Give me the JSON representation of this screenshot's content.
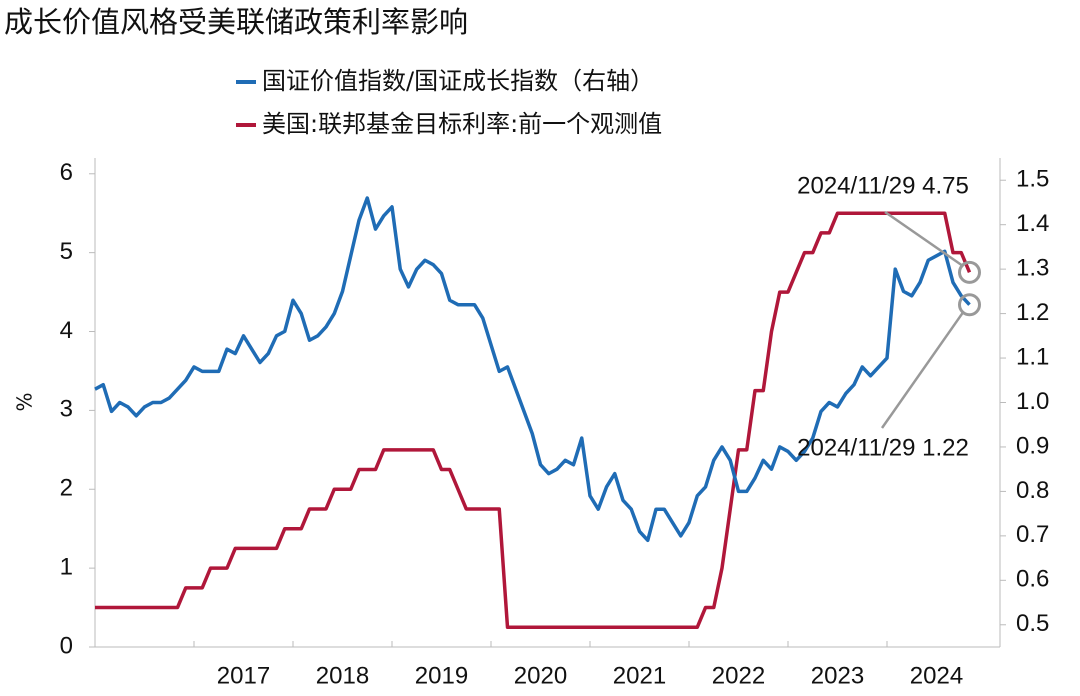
{
  "chart_data": {
    "type": "line",
    "title": "成长价值风格受美联储政策利率影响",
    "y_label": "%",
    "x": [
      "2016-01",
      "2016-02",
      "2016-03",
      "2016-04",
      "2016-05",
      "2016-06",
      "2016-07",
      "2016-08",
      "2016-09",
      "2016-10",
      "2016-11",
      "2016-12",
      "2017-01",
      "2017-02",
      "2017-03",
      "2017-04",
      "2017-05",
      "2017-06",
      "2017-07",
      "2017-08",
      "2017-09",
      "2017-10",
      "2017-11",
      "2017-12",
      "2018-01",
      "2018-02",
      "2018-03",
      "2018-04",
      "2018-05",
      "2018-06",
      "2018-07",
      "2018-08",
      "2018-09",
      "2018-10",
      "2018-11",
      "2018-12",
      "2019-01",
      "2019-02",
      "2019-03",
      "2019-04",
      "2019-05",
      "2019-06",
      "2019-07",
      "2019-08",
      "2019-09",
      "2019-10",
      "2019-11",
      "2019-12",
      "2020-01",
      "2020-02",
      "2020-03",
      "2020-04",
      "2020-05",
      "2020-06",
      "2020-07",
      "2020-08",
      "2020-09",
      "2020-10",
      "2020-11",
      "2020-12",
      "2021-01",
      "2021-02",
      "2021-03",
      "2021-04",
      "2021-05",
      "2021-06",
      "2021-07",
      "2021-08",
      "2021-09",
      "2021-10",
      "2021-11",
      "2021-12",
      "2022-01",
      "2022-02",
      "2022-03",
      "2022-04",
      "2022-05",
      "2022-06",
      "2022-07",
      "2022-08",
      "2022-09",
      "2022-10",
      "2022-11",
      "2022-12",
      "2023-01",
      "2023-02",
      "2023-03",
      "2023-04",
      "2023-05",
      "2023-06",
      "2023-07",
      "2023-08",
      "2023-09",
      "2023-10",
      "2023-11",
      "2023-12",
      "2024-01",
      "2024-02",
      "2024-03",
      "2024-04",
      "2024-05",
      "2024-06",
      "2024-07",
      "2024-08",
      "2024-09",
      "2024-10",
      "2024-11"
    ],
    "xlim": [
      2016,
      2025
    ],
    "xticks": [
      2017,
      2018,
      2019,
      2020,
      2021,
      2022,
      2023,
      2024
    ],
    "ylim": [
      0,
      6.2
    ],
    "yticks": [
      0,
      1,
      2,
      3,
      4,
      5,
      6
    ],
    "y2lim": [
      0.45,
      1.55
    ],
    "y2ticks": [
      0.5,
      0.6,
      0.7,
      0.8,
      0.9,
      {
        "value": 1,
        "label": "1.0"
      },
      1.1,
      1.2,
      1.3,
      1.4,
      1.5
    ],
    "series": [
      {
        "name": "国证价值指数/国证成长指数（右轴）",
        "color": "#1f6cb5",
        "axis": "y2",
        "values": [
          1.03,
          1.04,
          0.98,
          1.0,
          0.99,
          0.97,
          0.99,
          1.0,
          1.0,
          1.01,
          1.03,
          1.05,
          1.08,
          1.07,
          1.07,
          1.07,
          1.12,
          1.11,
          1.15,
          1.12,
          1.09,
          1.11,
          1.15,
          1.16,
          1.23,
          1.2,
          1.14,
          1.15,
          1.17,
          1.2,
          1.25,
          1.33,
          1.41,
          1.46,
          1.39,
          1.42,
          1.44,
          1.3,
          1.26,
          1.3,
          1.32,
          1.31,
          1.29,
          1.23,
          1.22,
          1.22,
          1.22,
          1.19,
          1.13,
          1.07,
          1.08,
          1.03,
          0.98,
          0.93,
          0.86,
          0.84,
          0.85,
          0.87,
          0.86,
          0.92,
          0.79,
          0.76,
          0.81,
          0.84,
          0.78,
          0.76,
          0.71,
          0.69,
          0.76,
          0.76,
          0.73,
          0.7,
          0.73,
          0.79,
          0.81,
          0.87,
          0.9,
          0.87,
          0.8,
          0.8,
          0.83,
          0.87,
          0.85,
          0.9,
          0.89,
          0.87,
          0.89,
          0.92,
          0.98,
          1.0,
          0.99,
          1.02,
          1.04,
          1.08,
          1.06,
          1.08,
          1.1,
          1.3,
          1.25,
          1.24,
          1.27,
          1.32,
          1.33,
          1.34,
          1.27,
          1.24,
          1.22
        ]
      },
      {
        "name": "美国:联邦基金目标利率:前一个观测值",
        "color": "#b0173a",
        "axis": "y",
        "values": [
          0.5,
          0.5,
          0.5,
          0.5,
          0.5,
          0.5,
          0.5,
          0.5,
          0.5,
          0.5,
          0.5,
          0.75,
          0.75,
          0.75,
          1.0,
          1.0,
          1.0,
          1.25,
          1.25,
          1.25,
          1.25,
          1.25,
          1.25,
          1.5,
          1.5,
          1.5,
          1.75,
          1.75,
          1.75,
          2.0,
          2.0,
          2.0,
          2.25,
          2.25,
          2.25,
          2.5,
          2.5,
          2.5,
          2.5,
          2.5,
          2.5,
          2.5,
          2.25,
          2.25,
          2.0,
          1.75,
          1.75,
          1.75,
          1.75,
          1.75,
          0.25,
          0.25,
          0.25,
          0.25,
          0.25,
          0.25,
          0.25,
          0.25,
          0.25,
          0.25,
          0.25,
          0.25,
          0.25,
          0.25,
          0.25,
          0.25,
          0.25,
          0.25,
          0.25,
          0.25,
          0.25,
          0.25,
          0.25,
          0.25,
          0.5,
          0.5,
          1.0,
          1.75,
          2.5,
          2.5,
          3.25,
          3.25,
          4.0,
          4.5,
          4.5,
          4.75,
          5.0,
          5.0,
          5.25,
          5.25,
          5.5,
          5.5,
          5.5,
          5.5,
          5.5,
          5.5,
          5.5,
          5.5,
          5.5,
          5.5,
          5.5,
          5.5,
          5.5,
          5.5,
          5.0,
          5.0,
          4.75
        ]
      }
    ],
    "annotations": [
      {
        "text": "2024/11/29 4.75"
      },
      {
        "text": "2024/11/29 1.22"
      }
    ]
  }
}
